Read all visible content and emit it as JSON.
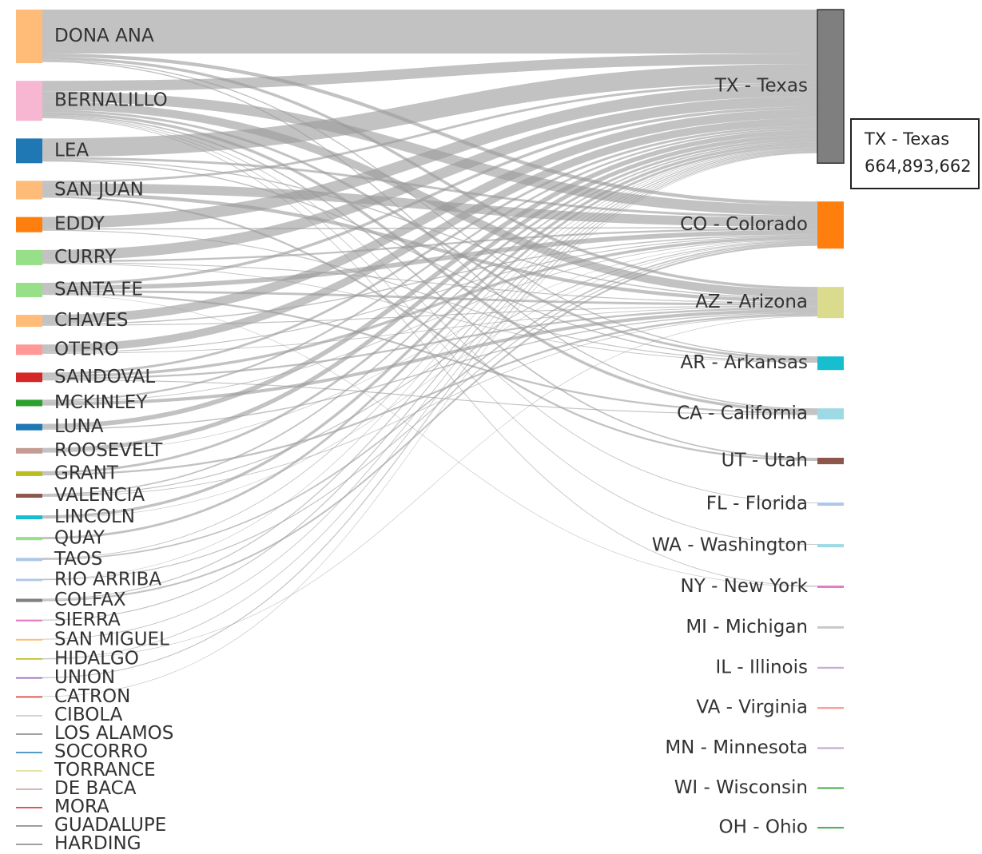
{
  "chart_data": {
    "type": "sankey",
    "sources": [
      {
        "name": "DONA ANA",
        "value": 232000000,
        "color": "#ffbb78"
      },
      {
        "name": "BERNALILLO",
        "value": 173000000,
        "color": "#f7b6d2"
      },
      {
        "name": "LEA",
        "value": 107000000,
        "color": "#1f77b4"
      },
      {
        "name": "SAN JUAN",
        "value": 80000000,
        "color": "#ffbb78"
      },
      {
        "name": "EDDY",
        "value": 66000000,
        "color": "#ff7f0e"
      },
      {
        "name": "CURRY",
        "value": 66000000,
        "color": "#98df8a"
      },
      {
        "name": "SANTA FE",
        "value": 62000000,
        "color": "#98df8a"
      },
      {
        "name": "CHAVES",
        "value": 52000000,
        "color": "#ffbb78"
      },
      {
        "name": "OTERO",
        "value": 45000000,
        "color": "#ff9896"
      },
      {
        "name": "SANDOVAL",
        "value": 41000000,
        "color": "#d62728"
      },
      {
        "name": "MCKINLEY",
        "value": 28000000,
        "color": "#2ca02c"
      },
      {
        "name": "LUNA",
        "value": 28000000,
        "color": "#1f77b4"
      },
      {
        "name": "ROOSEVELT",
        "value": 24000000,
        "color": "#c49c94"
      },
      {
        "name": "GRANT",
        "value": 21000000,
        "color": "#bcbd22"
      },
      {
        "name": "VALENCIA",
        "value": 17000000,
        "color": "#8c564b"
      },
      {
        "name": "LINCOLN",
        "value": 17000000,
        "color": "#17becf"
      },
      {
        "name": "QUAY",
        "value": 14000000,
        "color": "#98df8a"
      },
      {
        "name": "TAOS",
        "value": 14000000,
        "color": "#aec7e8"
      },
      {
        "name": "RIO ARRIBA",
        "value": 10000000,
        "color": "#aec7e8"
      },
      {
        "name": "COLFAX",
        "value": 14000000,
        "color": "#7f7f7f"
      },
      {
        "name": "SIERRA",
        "value": 7000000,
        "color": "#e377c2"
      },
      {
        "name": "SAN MIGUEL",
        "value": 7000000,
        "color": "#ffbb78"
      },
      {
        "name": "HIDALGO",
        "value": 6000000,
        "color": "#bcbd22"
      },
      {
        "name": "UNION",
        "value": 6000000,
        "color": "#9467bd"
      },
      {
        "name": "CATRON",
        "value": 5000000,
        "color": "#d62728"
      },
      {
        "name": "CIBOLA",
        "value": 3000000,
        "color": "#c7c7c7"
      },
      {
        "name": "LOS ALAMOS",
        "value": 3000000,
        "color": "#7f7f7f"
      },
      {
        "name": "SOCORRO",
        "value": 3000000,
        "color": "#1f77b4"
      },
      {
        "name": "TORRANCE",
        "value": 3000000,
        "color": "#dbdb8d"
      },
      {
        "name": "DE BACA",
        "value": 3000000,
        "color": "#c49c94"
      },
      {
        "name": "MORA",
        "value": 3000000,
        "color": "#d62728"
      },
      {
        "name": "GUADALUPE",
        "value": 3000000,
        "color": "#7f7f7f"
      },
      {
        "name": "HARDING",
        "value": 3000000,
        "color": "#7f7f7f"
      }
    ],
    "targets": [
      {
        "name": "TX - Texas",
        "value": 664893662,
        "value_label": "664,893,662",
        "color": "#7f7f7f"
      },
      {
        "name": "CO - Colorado",
        "value": 204000000,
        "color": "#ff7f0e"
      },
      {
        "name": "AZ - Arizona",
        "value": 135000000,
        "color": "#dbdb8d"
      },
      {
        "name": "AR - Arkansas",
        "value": 59000000,
        "color": "#17becf"
      },
      {
        "name": "CA - California",
        "value": 48000000,
        "color": "#9edae5"
      },
      {
        "name": "UT - Utah",
        "value": 28000000,
        "color": "#8c564b"
      },
      {
        "name": "FL - Florida",
        "value": 14000000,
        "color": "#aec7e8"
      },
      {
        "name": "WA - Washington",
        "value": 14000000,
        "color": "#9edae5"
      },
      {
        "name": "NY - New York",
        "value": 10000000,
        "color": "#e377c2"
      },
      {
        "name": "MI - Michigan",
        "value": 10000000,
        "color": "#c7c7c7"
      },
      {
        "name": "IL - Illinois",
        "value": 8000000,
        "color": "#c5b0d5"
      },
      {
        "name": "VA - Virginia",
        "value": 8000000,
        "color": "#ff9896"
      },
      {
        "name": "MN - Minnesota",
        "value": 8000000,
        "color": "#c5b0d5"
      },
      {
        "name": "WI - Wisconsin",
        "value": 6000000,
        "color": "#2ca02c"
      },
      {
        "name": "OH - Ohio",
        "value": 6000000,
        "color": "#2ca02c"
      }
    ],
    "links": [
      {
        "source": 0,
        "target": 0,
        "value": 190000000
      },
      {
        "source": 0,
        "target": 1,
        "value": 15000000
      },
      {
        "source": 0,
        "target": 2,
        "value": 12000000
      },
      {
        "source": 0,
        "target": 3,
        "value": 5000000
      },
      {
        "source": 0,
        "target": 4,
        "value": 5000000
      },
      {
        "source": 1,
        "target": 0,
        "value": 45000000
      },
      {
        "source": 1,
        "target": 1,
        "value": 45000000
      },
      {
        "source": 1,
        "target": 2,
        "value": 35000000
      },
      {
        "source": 1,
        "target": 3,
        "value": 10000000
      },
      {
        "source": 1,
        "target": 4,
        "value": 12000000
      },
      {
        "source": 1,
        "target": 5,
        "value": 6000000
      },
      {
        "source": 1,
        "target": 6,
        "value": 3000000
      },
      {
        "source": 1,
        "target": 7,
        "value": 3000000
      },
      {
        "source": 1,
        "target": 8,
        "value": 3000000
      },
      {
        "source": 2,
        "target": 0,
        "value": 80000000
      },
      {
        "source": 2,
        "target": 1,
        "value": 10000000
      },
      {
        "source": 2,
        "target": 2,
        "value": 5000000
      },
      {
        "source": 2,
        "target": 3,
        "value": 5000000
      },
      {
        "source": 3,
        "target": 0,
        "value": 10000000
      },
      {
        "source": 3,
        "target": 1,
        "value": 40000000
      },
      {
        "source": 3,
        "target": 2,
        "value": 15000000
      },
      {
        "source": 3,
        "target": 5,
        "value": 8000000
      },
      {
        "source": 4,
        "target": 0,
        "value": 50000000
      },
      {
        "source": 4,
        "target": 1,
        "value": 5000000
      },
      {
        "source": 4,
        "target": 3,
        "value": 4000000
      },
      {
        "source": 5,
        "target": 0,
        "value": 45000000
      },
      {
        "source": 5,
        "target": 1,
        "value": 8000000
      },
      {
        "source": 5,
        "target": 2,
        "value": 4000000
      },
      {
        "source": 5,
        "target": 3,
        "value": 3000000
      },
      {
        "source": 6,
        "target": 0,
        "value": 12000000
      },
      {
        "source": 6,
        "target": 1,
        "value": 20000000
      },
      {
        "source": 6,
        "target": 2,
        "value": 10000000
      },
      {
        "source": 6,
        "target": 4,
        "value": 8000000
      },
      {
        "source": 6,
        "target": 8,
        "value": 2000000
      },
      {
        "source": 7,
        "target": 0,
        "value": 38000000
      },
      {
        "source": 7,
        "target": 1,
        "value": 5000000
      },
      {
        "source": 7,
        "target": 2,
        "value": 4000000
      },
      {
        "source": 8,
        "target": 0,
        "value": 33000000
      },
      {
        "source": 8,
        "target": 1,
        "value": 4000000
      },
      {
        "source": 8,
        "target": 2,
        "value": 3000000
      },
      {
        "source": 9,
        "target": 0,
        "value": 10000000
      },
      {
        "source": 9,
        "target": 1,
        "value": 12000000
      },
      {
        "source": 9,
        "target": 2,
        "value": 8000000
      },
      {
        "source": 9,
        "target": 4,
        "value": 4000000
      },
      {
        "source": 10,
        "target": 0,
        "value": 8000000
      },
      {
        "source": 10,
        "target": 1,
        "value": 3000000
      },
      {
        "source": 10,
        "target": 2,
        "value": 14000000
      },
      {
        "source": 11,
        "target": 0,
        "value": 20000000
      },
      {
        "source": 11,
        "target": 2,
        "value": 5000000
      },
      {
        "source": 12,
        "target": 0,
        "value": 18000000
      },
      {
        "source": 12,
        "target": 1,
        "value": 2000000
      },
      {
        "source": 13,
        "target": 0,
        "value": 10000000
      },
      {
        "source": 13,
        "target": 2,
        "value": 8000000
      },
      {
        "source": 14,
        "target": 0,
        "value": 6000000
      },
      {
        "source": 14,
        "target": 1,
        "value": 4000000
      },
      {
        "source": 14,
        "target": 2,
        "value": 3000000
      },
      {
        "source": 15,
        "target": 0,
        "value": 12000000
      },
      {
        "source": 15,
        "target": 1,
        "value": 2000000
      },
      {
        "source": 16,
        "target": 0,
        "value": 10000000
      },
      {
        "source": 17,
        "target": 0,
        "value": 3000000
      },
      {
        "source": 17,
        "target": 1,
        "value": 6000000
      },
      {
        "source": 18,
        "target": 0,
        "value": 2000000
      },
      {
        "source": 18,
        "target": 1,
        "value": 4000000
      },
      {
        "source": 19,
        "target": 0,
        "value": 4000000
      },
      {
        "source": 19,
        "target": 1,
        "value": 7000000
      },
      {
        "source": 20,
        "target": 0,
        "value": 4000000
      },
      {
        "source": 21,
        "target": 0,
        "value": 3000000
      },
      {
        "source": 22,
        "target": 0,
        "value": 3000000
      },
      {
        "source": 22,
        "target": 2,
        "value": 2000000
      },
      {
        "source": 23,
        "target": 0,
        "value": 4000000
      },
      {
        "source": 24,
        "target": 0,
        "value": 2000000
      }
    ],
    "tooltip": {
      "target": 0
    }
  }
}
